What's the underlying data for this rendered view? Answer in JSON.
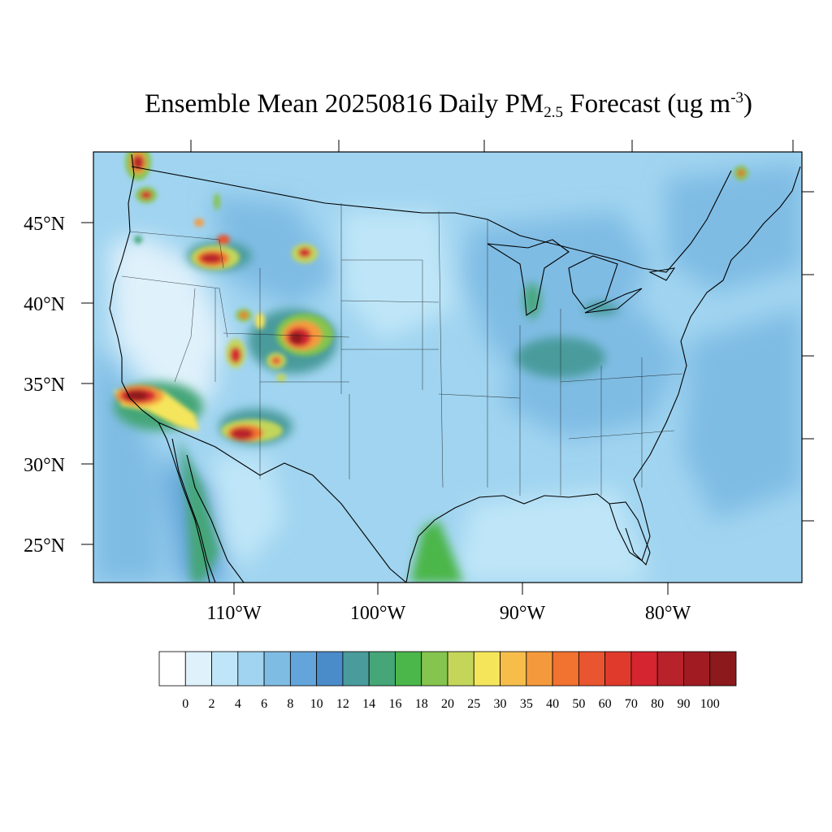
{
  "title": {
    "main": "Ensemble Mean 20250816 Daily PM",
    "sub": "2.5",
    "after_sub": " Forecast (ug m",
    "sup": "-3",
    "close": ")"
  },
  "map": {
    "lat_labels": [
      "45°N",
      "40°N",
      "35°N",
      "30°N",
      "25°N"
    ],
    "lon_labels": [
      "110°W",
      "100°W",
      "90°W",
      "80°W"
    ],
    "background_color": "#a0d4f0",
    "plumes": [
      {
        "region": "northern-washington",
        "peak": 90
      },
      {
        "region": "western-washington",
        "peak": 80
      },
      {
        "region": "central-oregon",
        "peak": 80
      },
      {
        "region": "central-idaho",
        "peak": 70
      },
      {
        "region": "southern-california",
        "peak": 90
      },
      {
        "region": "central-arizona",
        "peak": 90
      },
      {
        "region": "southern-colorado",
        "peak": 90
      },
      {
        "region": "southern-utah",
        "peak": 80
      },
      {
        "region": "northern-wyoming",
        "peak": 70
      },
      {
        "region": "central-colorado",
        "peak": 60
      },
      {
        "region": "nova-scotia",
        "peak": 50
      }
    ]
  },
  "colorbar": {
    "levels": [
      "0",
      "2",
      "4",
      "6",
      "8",
      "10",
      "12",
      "14",
      "16",
      "18",
      "20",
      "25",
      "30",
      "35",
      "40",
      "50",
      "60",
      "70",
      "80",
      "90",
      "100"
    ],
    "colors": [
      "#ffffff",
      "#dff1fb",
      "#bfe6f8",
      "#a0d4f0",
      "#7fbce4",
      "#63a5da",
      "#4a8bc9",
      "#4a9b9c",
      "#45a678",
      "#4bb649",
      "#85c44e",
      "#c3d65a",
      "#f5e55b",
      "#f7bd4b",
      "#f59a3c",
      "#f2722f",
      "#e95530",
      "#e03a2d",
      "#d42530",
      "#b8222a",
      "#a01c22",
      "#8c1a1d"
    ]
  }
}
